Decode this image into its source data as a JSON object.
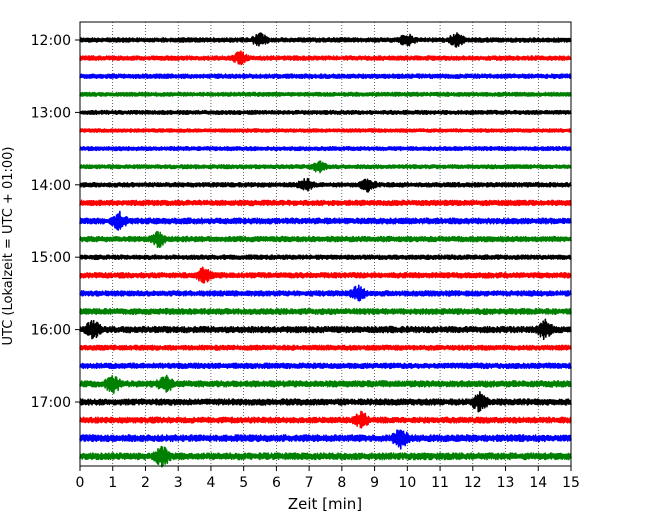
{
  "chart_data": {
    "type": "line",
    "title": "",
    "xlabel": "Zeit  [min]",
    "ylabel": "UTC (Lokalzeit = UTC + 01:00)",
    "xlim": [
      0,
      15
    ],
    "x_ticks": [
      0,
      1,
      2,
      3,
      4,
      5,
      6,
      7,
      8,
      9,
      10,
      11,
      12,
      13,
      14,
      15
    ],
    "y_ticks": [
      "12:00",
      "13:00",
      "14:00",
      "15:00",
      "16:00",
      "17:00"
    ],
    "grid": "vertical dotted lines at each minute",
    "trace_interval_minutes": 15,
    "colors": [
      "#000000",
      "#ff0000",
      "#0000ff",
      "#008000"
    ],
    "series": [
      {
        "start": "12:00",
        "color": "#000000",
        "amplitude": 0.45,
        "events": [
          5.5,
          10.0,
          11.5
        ]
      },
      {
        "start": "12:15",
        "color": "#ff0000",
        "amplitude": 0.45,
        "events": [
          4.9
        ]
      },
      {
        "start": "12:30",
        "color": "#0000ff",
        "amplitude": 0.45,
        "events": []
      },
      {
        "start": "12:45",
        "color": "#008000",
        "amplitude": 0.4,
        "events": []
      },
      {
        "start": "13:00",
        "color": "#000000",
        "amplitude": 0.4,
        "events": []
      },
      {
        "start": "13:15",
        "color": "#ff0000",
        "amplitude": 0.35,
        "events": []
      },
      {
        "start": "13:30",
        "color": "#0000ff",
        "amplitude": 0.4,
        "events": []
      },
      {
        "start": "13:45",
        "color": "#008000",
        "amplitude": 0.4,
        "events": [
          7.3
        ]
      },
      {
        "start": "14:00",
        "color": "#000000",
        "amplitude": 0.45,
        "events": [
          6.9,
          8.8
        ]
      },
      {
        "start": "14:15",
        "color": "#ff0000",
        "amplitude": 0.55,
        "events": []
      },
      {
        "start": "14:30",
        "color": "#0000ff",
        "amplitude": 0.6,
        "events": [
          1.2
        ]
      },
      {
        "start": "14:45",
        "color": "#008000",
        "amplitude": 0.55,
        "events": [
          2.4
        ]
      },
      {
        "start": "15:00",
        "color": "#000000",
        "amplitude": 0.45,
        "events": []
      },
      {
        "start": "15:15",
        "color": "#ff0000",
        "amplitude": 0.55,
        "events": [
          3.8
        ]
      },
      {
        "start": "15:30",
        "color": "#0000ff",
        "amplitude": 0.55,
        "events": [
          8.5
        ]
      },
      {
        "start": "15:45",
        "color": "#008000",
        "amplitude": 0.6,
        "events": []
      },
      {
        "start": "16:00",
        "color": "#000000",
        "amplitude": 0.65,
        "events": [
          0.4,
          14.2
        ]
      },
      {
        "start": "16:15",
        "color": "#ff0000",
        "amplitude": 0.5,
        "events": []
      },
      {
        "start": "16:30",
        "color": "#0000ff",
        "amplitude": 0.55,
        "events": []
      },
      {
        "start": "16:45",
        "color": "#008000",
        "amplitude": 0.65,
        "events": [
          1.0,
          2.6
        ]
      },
      {
        "start": "17:00",
        "color": "#000000",
        "amplitude": 0.65,
        "events": [
          12.2
        ]
      },
      {
        "start": "17:15",
        "color": "#ff0000",
        "amplitude": 0.6,
        "events": [
          8.6
        ]
      },
      {
        "start": "17:30",
        "color": "#0000ff",
        "amplitude": 0.7,
        "events": [
          9.8
        ]
      },
      {
        "start": "17:45",
        "color": "#008000",
        "amplitude": 0.7,
        "events": [
          2.5
        ]
      }
    ]
  }
}
